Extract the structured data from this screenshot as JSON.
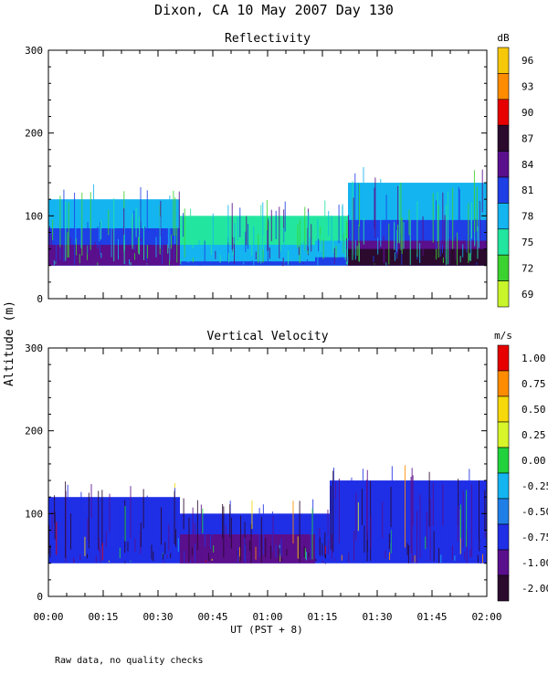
{
  "page": {
    "title": "Dixon, CA 10 May 2007  Day 130",
    "ylabel": "Altitude (m)",
    "xlabel": "UT  (PST + 8)",
    "note": "Raw data, no quality checks"
  },
  "chart_data": [
    {
      "type": "heatmap",
      "title": "Reflectivity",
      "unit_label": "dB",
      "ylabel": "Altitude (m)",
      "xlabel": "UT  (PST + 8)",
      "x_ticks": [
        "00:00",
        "00:15",
        "00:30",
        "00:45",
        "01:00",
        "01:15",
        "01:30",
        "01:45",
        "02:00"
      ],
      "xlim_minutes": [
        0,
        120
      ],
      "ylim": [
        0,
        300
      ],
      "y_ticks": [
        0,
        100,
        200,
        300
      ],
      "colorbar": {
        "labels": [
          "96",
          "93",
          "90",
          "87",
          "84",
          "81",
          "78",
          "75",
          "72",
          "69"
        ],
        "colors": [
          "#f7c80a",
          "#ff8c00",
          "#e60000",
          "#2b0a2e",
          "#5a0f8c",
          "#1f3fe6",
          "#14b4f0",
          "#22e6a0",
          "#3cd230",
          "#c8f52a"
        ]
      },
      "segments": [
        {
          "t_start": 0,
          "t_end": 36,
          "echo_top_m": 120,
          "echo_base_m": 40,
          "layers": [
            {
              "top_m": 120,
              "level": "78"
            },
            {
              "top_m": 85,
              "level": "81"
            },
            {
              "top_m": 65,
              "level": "84"
            }
          ]
        },
        {
          "t_start": 36,
          "t_end": 73,
          "echo_top_m": 100,
          "echo_base_m": 40,
          "layers": [
            {
              "top_m": 100,
              "level": "75"
            },
            {
              "top_m": 65,
              "level": "78"
            },
            {
              "top_m": 45,
              "level": "81"
            }
          ]
        },
        {
          "t_start": 73,
          "t_end": 82,
          "echo_top_m": 100,
          "echo_base_m": 40,
          "layers": [
            {
              "top_m": 100,
              "level": "75"
            },
            {
              "top_m": 70,
              "level": "78"
            },
            {
              "top_m": 50,
              "level": "81"
            }
          ]
        },
        {
          "t_start": 82,
          "t_end": 120,
          "echo_top_m": 140,
          "echo_base_m": 40,
          "layers": [
            {
              "top_m": 140,
              "level": "78"
            },
            {
              "top_m": 95,
              "level": "81"
            },
            {
              "top_m": 70,
              "level": "84"
            },
            {
              "top_m": 60,
              "level": "87"
            }
          ]
        }
      ]
    },
    {
      "type": "heatmap",
      "title": "Vertical Velocity",
      "unit_label": "m/s",
      "ylabel": "Altitude (m)",
      "xlabel": "UT  (PST + 8)",
      "x_ticks": [
        "00:00",
        "00:15",
        "00:30",
        "00:45",
        "01:00",
        "01:15",
        "01:30",
        "01:45",
        "02:00"
      ],
      "xlim_minutes": [
        0,
        120
      ],
      "ylim": [
        0,
        300
      ],
      "y_ticks": [
        0,
        100,
        200,
        300
      ],
      "colorbar": {
        "labels": [
          "1.00",
          "0.75",
          "0.50",
          "0.25",
          "0.00",
          "-0.25",
          "-0.50",
          "-0.75",
          "-1.00",
          "-2.00"
        ],
        "colors": [
          "#e60000",
          "#ff8c00",
          "#f7d80a",
          "#d8f52a",
          "#22d23c",
          "#14b4f0",
          "#1f7fe6",
          "#1f2fe6",
          "#5a0f8c",
          "#2b0a2e"
        ]
      },
      "segments": [
        {
          "t_start": 0,
          "t_end": 36,
          "echo_top_m": 120,
          "echo_base_m": 40,
          "layers": [
            {
              "top_m": 120,
              "level": "-0.75"
            }
          ]
        },
        {
          "t_start": 36,
          "t_end": 73,
          "echo_top_m": 100,
          "echo_base_m": 40,
          "layers": [
            {
              "top_m": 100,
              "level": "-0.75"
            },
            {
              "top_m": 75,
              "level": "-1.00"
            }
          ]
        },
        {
          "t_start": 73,
          "t_end": 77,
          "echo_top_m": 100,
          "echo_base_m": 40,
          "layers": [
            {
              "top_m": 100,
              "level": "-0.75"
            }
          ]
        },
        {
          "t_start": 77,
          "t_end": 120,
          "echo_top_m": 140,
          "echo_base_m": 40,
          "layers": [
            {
              "top_m": 140,
              "level": "-0.75"
            }
          ]
        }
      ]
    }
  ]
}
